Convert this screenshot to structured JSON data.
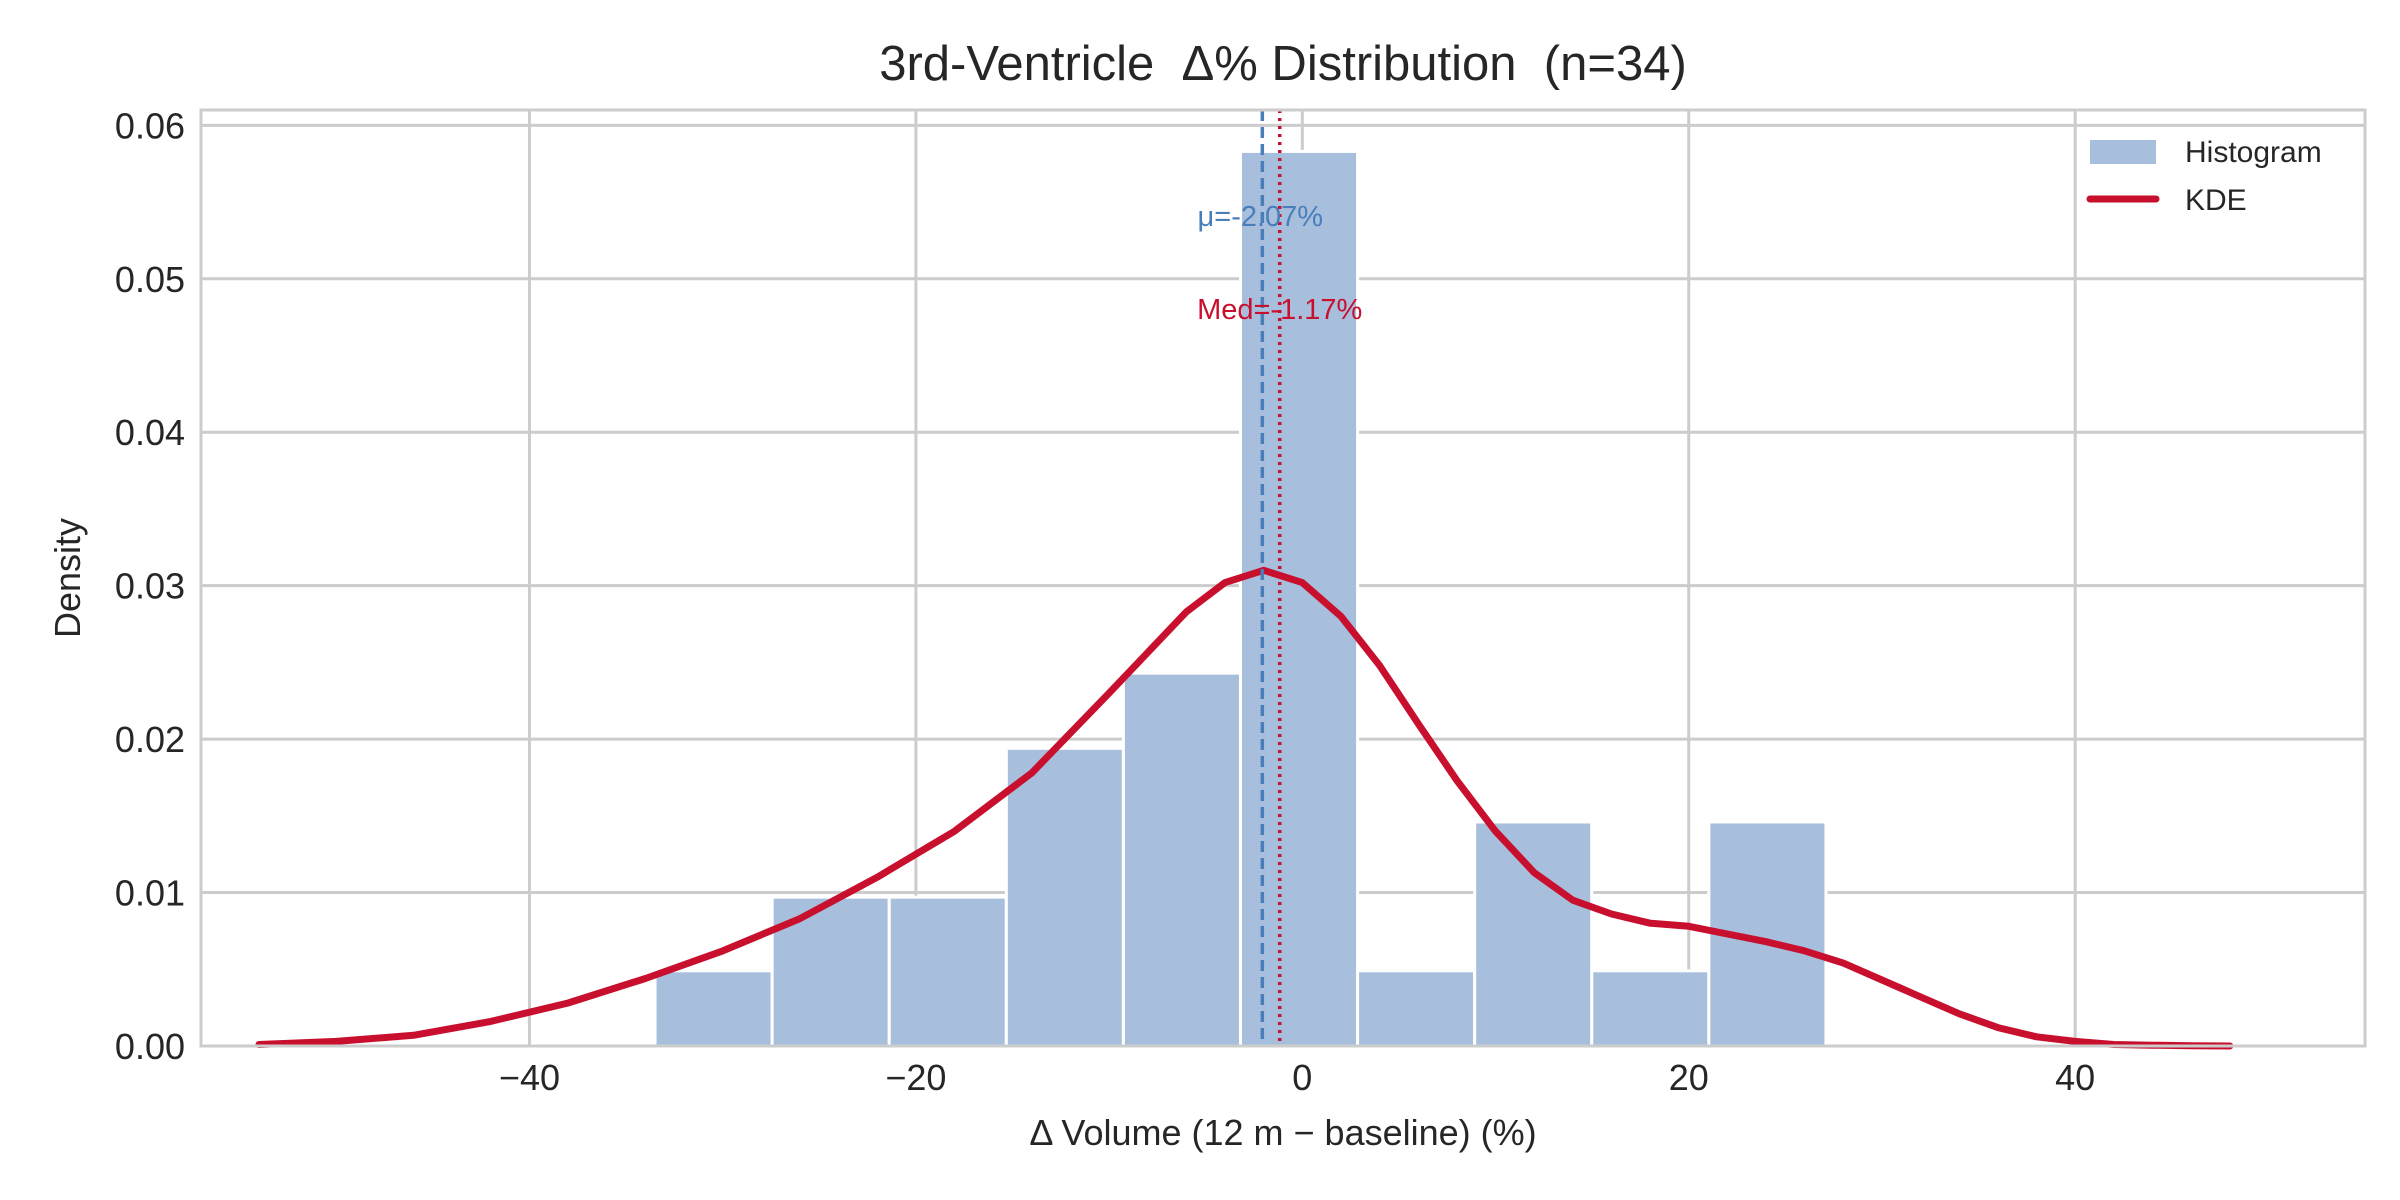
{
  "chart_data": {
    "type": "histogram",
    "title": "3rd-Ventricle  Δ% Distribution  (n=34)",
    "xlabel": "Δ Volume (12 m − baseline) (%)",
    "ylabel": "Density",
    "xlim": [
      -57,
      55
    ],
    "ylim": [
      0,
      0.061
    ],
    "xticks": [
      -40,
      -20,
      0,
      20,
      40
    ],
    "xtick_labels": [
      "−40",
      "−20",
      "0",
      "20",
      "40"
    ],
    "yticks": [
      0,
      0.01,
      0.02,
      0.03,
      0.04,
      0.05,
      0.06
    ],
    "ytick_labels": [
      "0.00",
      "0.01",
      "0.02",
      "0.03",
      "0.04",
      "0.05",
      "0.06"
    ],
    "grid": true,
    "legend_position": "top-right",
    "colors": {
      "histogram": "#a7bfdd",
      "kde": "#c8102e",
      "mean_line": "#4a7ebb",
      "median_line": "#c8102e"
    },
    "histogram": {
      "name": "Histogram",
      "bin_edges": [
        -33.5,
        -27.44,
        -21.38,
        -15.32,
        -9.26,
        -3.2,
        2.86,
        8.92,
        14.98,
        21.04,
        27.1
      ],
      "density": [
        0.0049,
        0.0097,
        0.0097,
        0.0194,
        0.0243,
        0.0583,
        0.0049,
        0.0146,
        0.0049,
        0.0146
      ]
    },
    "kde": {
      "name": "KDE",
      "x": [
        -54,
        -50,
        -46,
        -42,
        -38,
        -34,
        -30,
        -26,
        -22,
        -18,
        -14,
        -10,
        -6,
        -4,
        -2,
        0,
        2,
        4,
        6,
        8,
        10,
        12,
        14,
        16,
        18,
        20,
        22,
        24,
        26,
        28,
        30,
        32,
        34,
        36,
        38,
        40,
        42,
        44,
        46,
        48
      ],
      "y": [
        0.0001,
        0.0003,
        0.0007,
        0.0016,
        0.0028,
        0.0044,
        0.0062,
        0.0083,
        0.011,
        0.014,
        0.0178,
        0.023,
        0.0283,
        0.0302,
        0.031,
        0.0302,
        0.028,
        0.0248,
        0.021,
        0.0173,
        0.014,
        0.0113,
        0.0095,
        0.0086,
        0.008,
        0.0078,
        0.0073,
        0.0068,
        0.0062,
        0.0054,
        0.0043,
        0.0032,
        0.0021,
        0.0012,
        0.0006,
        0.0003,
        0.0001,
        5e-05,
        2e-05,
        0.0
      ]
    },
    "annotations": {
      "mean": {
        "value": -2.07,
        "label": "μ=-2.07%"
      },
      "median": {
        "value": -1.17,
        "label": "Med=-1.17%"
      }
    }
  }
}
